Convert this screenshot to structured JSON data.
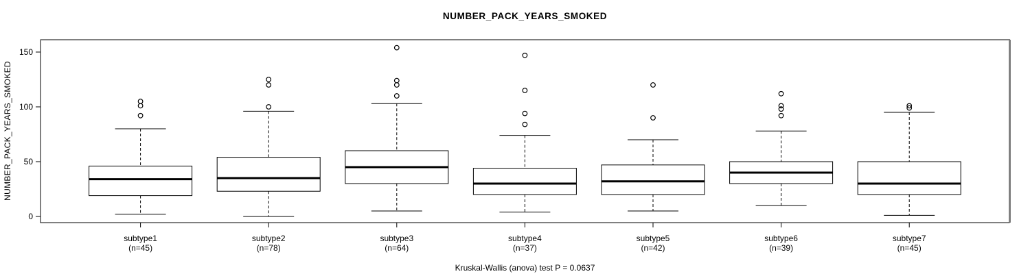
{
  "title": "NUMBER_PACK_YEARS_SMOKED",
  "y_axis": {
    "label": "NUMBER_PACK_YEARS_SMOKED",
    "ticks": [
      0,
      50,
      100,
      150
    ]
  },
  "footer": "Kruskal-Wallis (anova) test P = 0.0637",
  "chart_data": {
    "type": "boxplot",
    "title": "NUMBER_PACK_YEARS_SMOKED",
    "ylabel": "NUMBER_PACK_YEARS_SMOKED",
    "annotation": "Kruskal-Wallis (anova) test P = 0.0637",
    "yticks": [
      0,
      50,
      100,
      150
    ],
    "ylim": [
      -8,
      162
    ],
    "grid": false,
    "categories": [
      "subtype1",
      "subtype2",
      "subtype3",
      "subtype4",
      "subtype5",
      "subtype6",
      "subtype7"
    ],
    "sample_size_labels": [
      "(n=45)",
      "(n=78)",
      "(n=64)",
      "(n=37)",
      "(n=42)",
      "(n=39)",
      "(n=45)"
    ],
    "series": [
      {
        "name": "subtype1",
        "n": 45,
        "whisker_low": 2,
        "q1": 19,
        "median": 34,
        "q3": 46,
        "whisker_high": 80,
        "outliers": [
          105,
          101,
          92
        ]
      },
      {
        "name": "subtype2",
        "n": 78,
        "whisker_low": 0,
        "q1": 23,
        "median": 35,
        "q3": 54,
        "whisker_high": 96,
        "outliers": [
          125,
          120,
          100
        ]
      },
      {
        "name": "subtype3",
        "n": 64,
        "whisker_low": 5,
        "q1": 30,
        "median": 45,
        "q3": 60,
        "whisker_high": 103,
        "outliers": [
          154,
          124,
          120,
          110
        ]
      },
      {
        "name": "subtype4",
        "n": 37,
        "whisker_low": 4,
        "q1": 20,
        "median": 30,
        "q3": 44,
        "whisker_high": 74,
        "outliers": [
          147,
          115,
          94,
          84
        ]
      },
      {
        "name": "subtype5",
        "n": 42,
        "whisker_low": 5,
        "q1": 20,
        "median": 32,
        "q3": 47,
        "whisker_high": 70,
        "outliers": [
          120,
          90
        ]
      },
      {
        "name": "subtype6",
        "n": 39,
        "whisker_low": 10,
        "q1": 30,
        "median": 40,
        "q3": 50,
        "whisker_high": 78,
        "outliers": [
          112,
          101,
          98,
          92
        ]
      },
      {
        "name": "subtype7",
        "n": 45,
        "whisker_low": 1,
        "q1": 20,
        "median": 30,
        "q3": 50,
        "whisker_high": 95,
        "outliers": [
          101,
          99
        ]
      }
    ],
    "colors": {
      "stroke": "#000000",
      "box_fill": "#ffffff",
      "background": "#ffffff",
      "frame_shade": "#808080"
    }
  }
}
